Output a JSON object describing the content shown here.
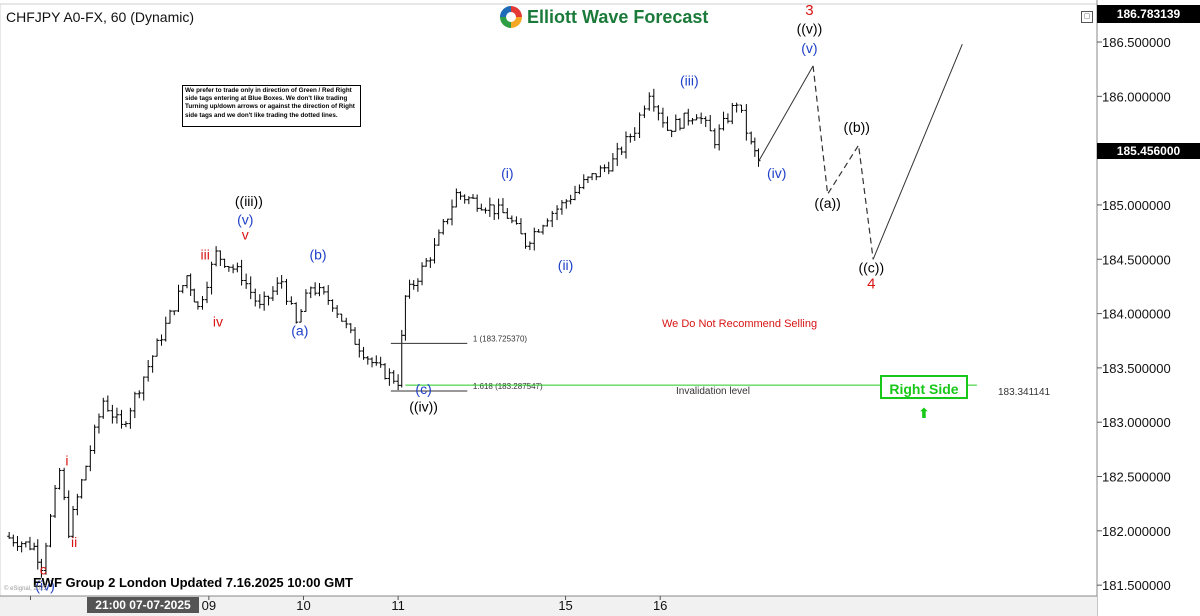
{
  "header": {
    "symbol_title": "CHFJPY A0-FX, 60 (Dynamic)",
    "logo_text": "Elliott Wave Forecast",
    "top_price": "186.783139",
    "current_price": "185.456000"
  },
  "note_box": {
    "text": "We prefer to trade only in direction of Green / Red Right side tags entering at Blue Boxes. We don't like trading Turning up/down arrows or against the direction of Right side tags and we don't like trading the dotted lines."
  },
  "footer": {
    "update_text": "EWF Group 2 London Updated 7.16.2025 10:00 GMT",
    "copyright": "© eSignal, 2025"
  },
  "colors": {
    "bars": "#000000",
    "wave_black": "#000000",
    "wave_blue": "#1e3fc8",
    "wave_red": "#d81414",
    "invalidation_line": "#22cc22",
    "right_side": "#18c818",
    "projection": "#333333"
  },
  "chart_data": {
    "type": "ohlc",
    "symbol": "CHFJPY A0-FX",
    "interval": "60",
    "ylim": [
      181.4,
      186.85
    ],
    "yticks": [
      181.5,
      182.0,
      182.5,
      183.0,
      183.5,
      184.0,
      184.5,
      185.0,
      185.5,
      186.0,
      186.5
    ],
    "ytick_labels": [
      "181.500000",
      "182.000000",
      "182.500000",
      "183.000000",
      "183.500000",
      "184.000000",
      "184.500000",
      "185.000000",
      "185.500000",
      "186.000000",
      "186.500000"
    ],
    "x_labels": [
      {
        "label": "21:00 07-07-2025",
        "x": 0.7
      },
      {
        "label": "09",
        "x": 5.6
      },
      {
        "label": "10",
        "x": 8.2
      },
      {
        "label": "11",
        "x": 10.8
      },
      {
        "label": "15",
        "x": 15.4
      },
      {
        "label": "16",
        "x": 18.0
      }
    ],
    "price_path": [
      [
        0,
        181.95
      ],
      [
        0.8,
        181.85
      ],
      [
        1.0,
        181.68
      ],
      [
        1.5,
        182.55
      ],
      [
        1.75,
        182.0
      ],
      [
        2.7,
        183.2
      ],
      [
        3.2,
        182.95
      ],
      [
        4.3,
        183.8
      ],
      [
        5.0,
        184.35
      ],
      [
        5.3,
        184.05
      ],
      [
        5.8,
        184.55
      ],
      [
        6.5,
        184.35
      ],
      [
        7.0,
        184.05
      ],
      [
        7.6,
        184.3
      ],
      [
        8.0,
        183.9
      ],
      [
        8.4,
        184.25
      ],
      [
        9.0,
        184.1
      ],
      [
        9.5,
        183.8
      ],
      [
        10.2,
        183.5
      ],
      [
        10.8,
        183.38
      ],
      [
        11.0,
        184.15
      ],
      [
        11.8,
        184.6
      ],
      [
        12.4,
        185.1
      ],
      [
        13.2,
        185.0
      ],
      [
        13.8,
        184.9
      ],
      [
        14.3,
        184.65
      ],
      [
        14.9,
        184.9
      ],
      [
        15.3,
        185.0
      ],
      [
        15.9,
        185.2
      ],
      [
        16.7,
        185.4
      ],
      [
        17.3,
        185.7
      ],
      [
        17.7,
        186.05
      ],
      [
        18.2,
        185.7
      ],
      [
        19.0,
        185.85
      ],
      [
        19.5,
        185.6
      ],
      [
        20.1,
        185.95
      ],
      [
        20.5,
        185.55
      ],
      [
        20.7,
        185.4
      ]
    ],
    "wave_labels": [
      {
        "text": "c",
        "x": 1.05,
        "y": 181.6,
        "color": "red"
      },
      {
        "text": "(iv)",
        "x": 1.1,
        "y": 181.45,
        "color": "blue"
      },
      {
        "text": "i",
        "x": 1.7,
        "y": 182.6,
        "color": "red"
      },
      {
        "text": "ii",
        "x": 1.9,
        "y": 181.85,
        "color": "red"
      },
      {
        "text": "iii",
        "x": 5.5,
        "y": 184.5,
        "color": "red"
      },
      {
        "text": "iv",
        "x": 5.85,
        "y": 183.88,
        "color": "red"
      },
      {
        "text": "v",
        "x": 6.6,
        "y": 184.68,
        "color": "red"
      },
      {
        "text": "(v)",
        "x": 6.6,
        "y": 184.82,
        "color": "blue"
      },
      {
        "text": "((iii))",
        "x": 6.7,
        "y": 184.99,
        "color": "black"
      },
      {
        "text": "(a)",
        "x": 8.1,
        "y": 183.8,
        "color": "blue"
      },
      {
        "text": "(b)",
        "x": 8.6,
        "y": 184.5,
        "color": "blue"
      },
      {
        "text": "(c)",
        "x": 11.5,
        "y": 183.26,
        "color": "blue"
      },
      {
        "text": "((iv))",
        "x": 11.5,
        "y": 183.1,
        "color": "black"
      },
      {
        "text": "(i)",
        "x": 13.8,
        "y": 185.25,
        "color": "blue"
      },
      {
        "text": "(ii)",
        "x": 15.4,
        "y": 184.4,
        "color": "blue"
      },
      {
        "text": "(iii)",
        "x": 18.8,
        "y": 186.1,
        "color": "blue"
      },
      {
        "text": "(iv)",
        "x": 21.2,
        "y": 185.25,
        "color": "blue"
      },
      {
        "text": "(v)",
        "x": 22.1,
        "y": 186.4,
        "color": "blue"
      },
      {
        "text": "((v))",
        "x": 22.1,
        "y": 186.58,
        "color": "black"
      },
      {
        "text": "3",
        "x": 22.1,
        "y": 186.75,
        "color": "red"
      },
      {
        "text": "((a))",
        "x": 22.6,
        "y": 184.97,
        "color": "black"
      },
      {
        "text": "((b))",
        "x": 23.4,
        "y": 185.67,
        "color": "black"
      },
      {
        "text": "((c))",
        "x": 23.8,
        "y": 184.38,
        "color": "black"
      },
      {
        "text": "4",
        "x": 23.8,
        "y": 184.23,
        "color": "red"
      }
    ],
    "projection": {
      "solid": [
        [
          20.7,
          185.4
        ],
        [
          22.2,
          186.28
        ]
      ],
      "dashed": [
        [
          22.2,
          186.28
        ],
        [
          22.6,
          185.1
        ],
        [
          23.45,
          185.55
        ],
        [
          23.85,
          184.5
        ]
      ],
      "final": [
        [
          23.85,
          184.5
        ],
        [
          26.3,
          186.48
        ]
      ]
    },
    "fib_levels": [
      {
        "label": "1 (183.725370)",
        "value": 183.72537,
        "x_start": 10.6,
        "x_end": 12.7
      },
      {
        "label": "1.618 (183.287547)",
        "value": 183.287547,
        "x_start": 10.6,
        "x_end": 12.7
      }
    ],
    "invalidation": {
      "label": "Invalidation level",
      "value": 183.341141,
      "value_label": "183.341141",
      "x_start": 11.0,
      "x_end": 26.7
    },
    "annotation": "We Do Not Recommend Selling",
    "right_side": {
      "label": "Right Side",
      "direction": "up"
    }
  }
}
